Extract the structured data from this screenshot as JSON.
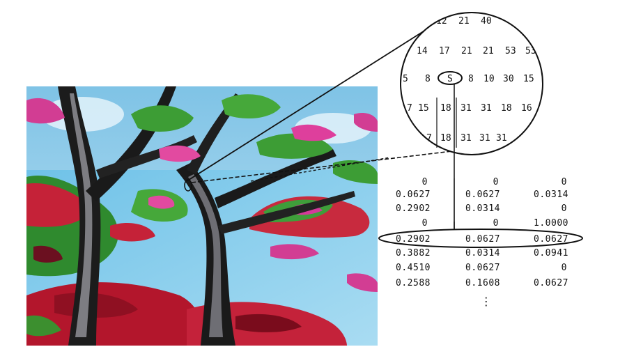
{
  "zoom_grid": {
    "rows": [
      [
        "12",
        "21",
        "40"
      ],
      [
        "14",
        "17",
        "21",
        "21",
        "53",
        "53"
      ],
      [
        "5",
        "8",
        "S",
        "8",
        "10",
        "30",
        "15"
      ],
      [
        "7",
        "15",
        "18",
        "31",
        "31",
        "18",
        "16"
      ],
      [
        "7",
        "18",
        "31",
        "31",
        "31"
      ]
    ]
  },
  "matrix": {
    "rows": [
      [
        "0",
        "0",
        "0"
      ],
      [
        "0.0627",
        "0.0627",
        "0.0314"
      ],
      [
        "0.2902",
        "0.0314",
        "0"
      ],
      [
        "0",
        "0",
        "1.0000"
      ],
      [
        "0.2902",
        "0.0627",
        "0.0627"
      ],
      [
        "0.3882",
        "0.0314",
        "0.0941"
      ],
      [
        "0.4510",
        "0.0627",
        "0"
      ],
      [
        "0.2588",
        "0.1608",
        "0.0627"
      ]
    ],
    "ellipsis": "⋮"
  }
}
